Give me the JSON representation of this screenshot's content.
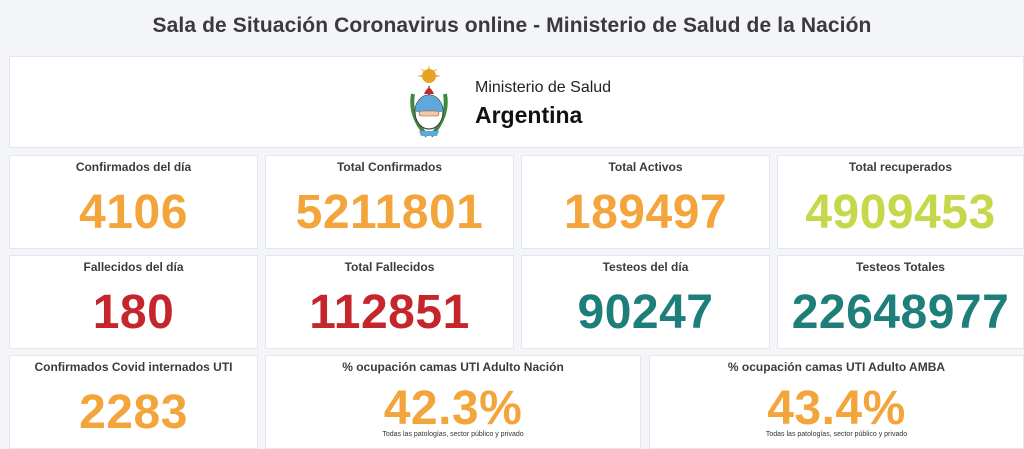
{
  "header": {
    "title": "Sala de Situación Coronavirus online - Ministerio de Salud de la Nación"
  },
  "logo": {
    "line1": "Ministerio de Salud",
    "line2": "Argentina"
  },
  "colors": {
    "orange": "#f3a43a",
    "lime": "#c5d84a",
    "red": "#c5262b",
    "teal": "#1e7e7a"
  },
  "row1": [
    {
      "label": "Confirmados del día",
      "value": "4106"
    },
    {
      "label": "Total Confirmados",
      "value": "5211801"
    },
    {
      "label": "Total Activos",
      "value": "189497"
    },
    {
      "label": "Total recuperados",
      "value": "4909453"
    }
  ],
  "row2": [
    {
      "label": "Fallecidos del día",
      "value": "180"
    },
    {
      "label": "Total Fallecidos",
      "value": "112851"
    },
    {
      "label": "Testeos del día",
      "value": "90247"
    },
    {
      "label": "Testeos Totales",
      "value": "22648977"
    }
  ],
  "row3": [
    {
      "label": "Confirmados Covid internados UTI",
      "value": "2283"
    },
    {
      "label": "% ocupación camas UTI Adulto Nación",
      "value": "42.3%",
      "note": "Todas las patologías, sector público y privado"
    },
    {
      "label": "% ocupación camas UTI Adulto AMBA",
      "value": "43.4%",
      "note": "Todas las patologías, sector público y privado"
    }
  ]
}
